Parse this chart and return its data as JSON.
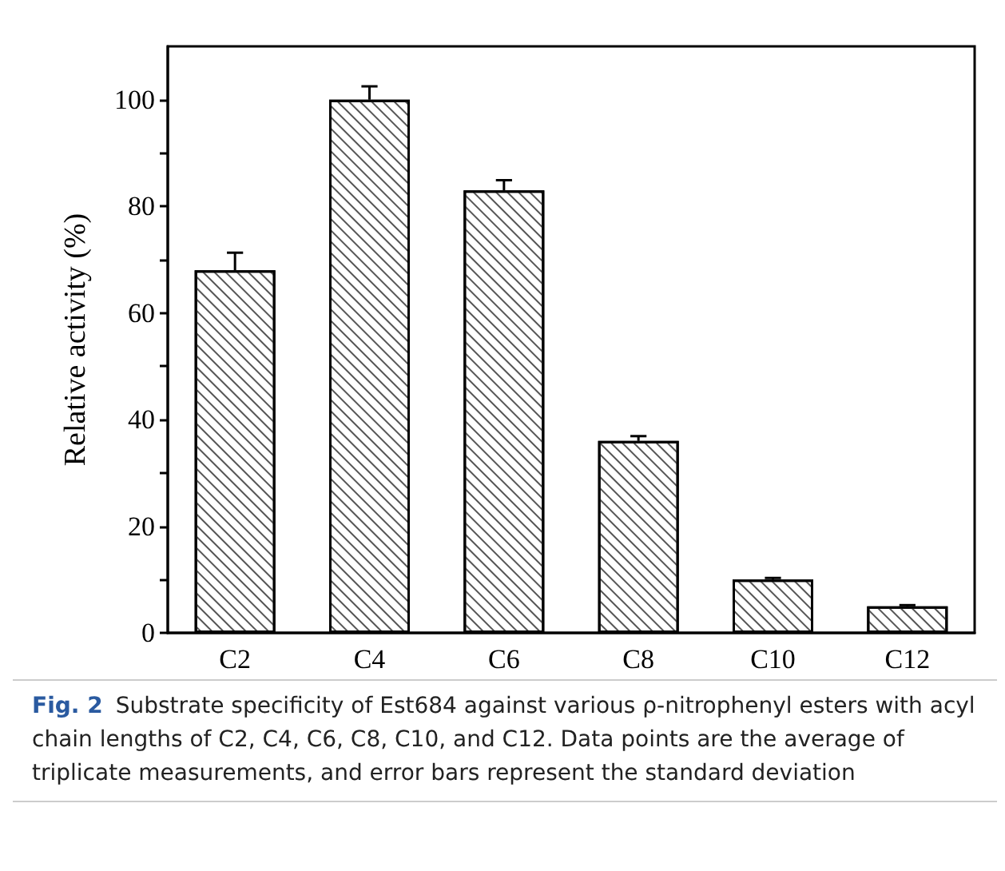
{
  "chart_data": {
    "type": "bar",
    "categories": [
      "C2",
      "C4",
      "C6",
      "C8",
      "C10",
      "C12"
    ],
    "values": [
      68,
      100,
      83,
      36,
      10,
      5
    ],
    "errors": [
      3.3,
      2.5,
      1.9,
      0.9,
      0.3,
      0.2
    ],
    "color": "#ffffff",
    "ylabel": "Relative activity (%)",
    "ylim": [
      0,
      110
    ],
    "yticks": [
      0,
      {
        "value": 10,
        "label": null
      },
      20,
      {
        "value": 30,
        "label": null
      },
      40,
      {
        "value": 50,
        "label": null
      },
      60,
      {
        "value": 70,
        "label": null
      },
      80,
      {
        "value": 90,
        "label": null
      },
      100
    ],
    "grid": false,
    "annotations": [
      "Fig. 2",
      "Substrate specificity of Est684 against various ρ-nitrophenyl esters with acyl chain lengths of C2, C4, C6, C8, C10, and C12. Data points are the average of triplicate measurements, and error bars represent the standard deviation"
    ]
  }
}
